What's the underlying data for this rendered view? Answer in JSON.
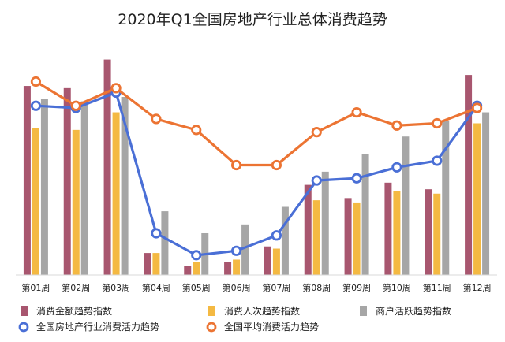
{
  "chart_data": {
    "type": "bar",
    "title": "2020年Q1全国房地产行业总体消费趋势",
    "categories": [
      "第01周",
      "第02周",
      "第03周",
      "第04周",
      "第05周",
      "第06周",
      "第07周",
      "第08周",
      "第09周",
      "第10周",
      "第11周",
      "第12周"
    ],
    "ylim": [
      0,
      100
    ],
    "grid": false,
    "legend_position": "bottom",
    "series": [
      {
        "name": "消费金额趋势指数",
        "kind": "bar",
        "color": "#a8566f",
        "values": [
          86,
          85,
          98,
          10,
          4,
          6,
          13,
          41,
          35,
          42,
          39,
          91
        ]
      },
      {
        "name": "消费人次趋势指数",
        "kind": "bar",
        "color": "#f4b942",
        "values": [
          67,
          66,
          74,
          10,
          6,
          7,
          12,
          34,
          33,
          38,
          37,
          69
        ]
      },
      {
        "name": "商户活跃趋势指数",
        "kind": "bar",
        "color": "#a6a6a6",
        "values": [
          80,
          79,
          81,
          29,
          19,
          23,
          31,
          47,
          55,
          63,
          70,
          74
        ]
      },
      {
        "name": "全国房地产行业消费活力趋势",
        "kind": "line",
        "color": "#4a6fd6",
        "values": [
          77,
          76,
          83,
          19,
          9,
          11,
          18,
          43,
          44,
          49,
          52,
          77
        ]
      },
      {
        "name": "全国平均消费活力趋势",
        "kind": "line",
        "color": "#ec7433",
        "values": [
          88,
          77,
          85,
          71,
          66,
          50,
          50,
          65,
          74,
          68,
          69,
          76
        ]
      }
    ]
  }
}
